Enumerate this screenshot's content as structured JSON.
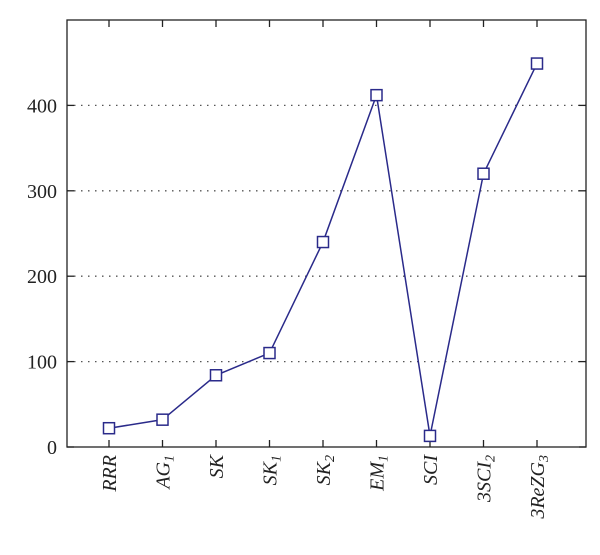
{
  "chart_data": {
    "type": "line",
    "categories": [
      {
        "base": "RRR",
        "sub": ""
      },
      {
        "base": "AG",
        "sub": "1"
      },
      {
        "base": "SK",
        "sub": ""
      },
      {
        "base": "SK",
        "sub": "1"
      },
      {
        "base": "SK",
        "sub": "2"
      },
      {
        "base": "EM",
        "sub": "1"
      },
      {
        "base": "SCI",
        "sub": ""
      },
      {
        "base": "3SCI",
        "sub": "2"
      },
      {
        "base": "3ReZG",
        "sub": "3"
      }
    ],
    "series": [
      {
        "values": [
          22,
          32,
          84,
          110,
          240,
          412,
          13,
          320,
          449
        ],
        "color": "#2a2a8a",
        "marker": "square"
      }
    ],
    "yticks": [
      0,
      100,
      200,
      300,
      400
    ],
    "ylim": [
      0,
      500
    ],
    "grid": "horizontal-dotted"
  }
}
